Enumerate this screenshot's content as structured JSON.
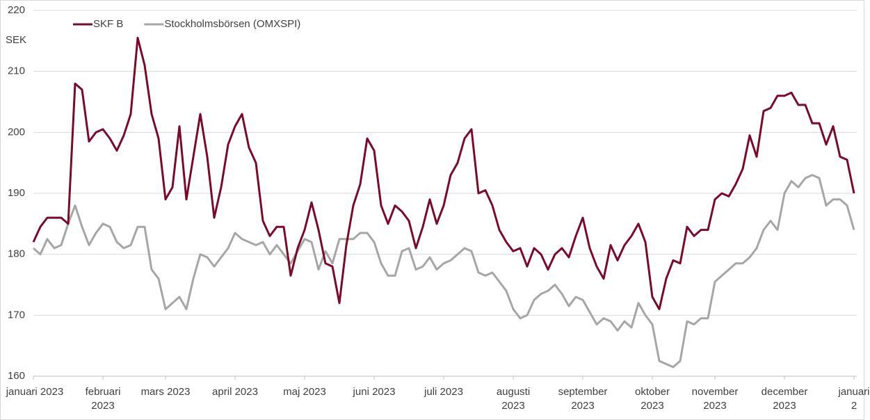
{
  "chart_data": {
    "type": "line",
    "y_label": "SEK",
    "categories": [
      "januari 2023",
      null,
      null,
      null,
      null,
      null,
      null,
      null,
      null,
      null,
      "februari\n2023",
      null,
      null,
      null,
      null,
      null,
      null,
      null,
      null,
      "mars 2023",
      null,
      null,
      null,
      null,
      null,
      null,
      null,
      null,
      null,
      "april 2023",
      null,
      null,
      null,
      null,
      null,
      null,
      null,
      null,
      null,
      "maj 2023",
      null,
      null,
      null,
      null,
      null,
      null,
      null,
      null,
      null,
      "juni 2023",
      null,
      null,
      null,
      null,
      null,
      null,
      null,
      null,
      null,
      "juli 2023",
      null,
      null,
      null,
      null,
      null,
      null,
      null,
      null,
      null,
      "augusti\n2023",
      null,
      null,
      null,
      null,
      null,
      null,
      null,
      null,
      null,
      "september\n2023",
      null,
      null,
      null,
      null,
      null,
      null,
      null,
      null,
      null,
      "oktober\n2023",
      null,
      null,
      null,
      null,
      null,
      null,
      null,
      null,
      "november\n2023",
      null,
      null,
      null,
      null,
      null,
      null,
      null,
      null,
      null,
      "december\n2023",
      null,
      null,
      null,
      null,
      null,
      null,
      null,
      null,
      null,
      "januari 2"
    ],
    "series": [
      {
        "name": "SKF B",
        "color": "#7b0a2a",
        "values": [
          182,
          184.5,
          186,
          186,
          186,
          185,
          208,
          207,
          198.5,
          200,
          200.5,
          199,
          197,
          199.5,
          203,
          215.5,
          211,
          203,
          199,
          189,
          191,
          201,
          189,
          196,
          203,
          196,
          186,
          191,
          198,
          201,
          203,
          197.5,
          195,
          185.5,
          183,
          184.5,
          184.5,
          176.5,
          181,
          184,
          188.5,
          184,
          178.5,
          178,
          172,
          181.5,
          188,
          191.5,
          199,
          197,
          188,
          185,
          188,
          187,
          185.5,
          181,
          184.5,
          189,
          185,
          188,
          193,
          195,
          199,
          200.5,
          190,
          190.5,
          188,
          184,
          182,
          180.5,
          181,
          178,
          181,
          180,
          177.5,
          180,
          181,
          179.5,
          183,
          186,
          181,
          178,
          176,
          181.5,
          179,
          181.5,
          183,
          185,
          182,
          173,
          171,
          176,
          179,
          178.5,
          184.5,
          183,
          184,
          184,
          189,
          190,
          189.5,
          191.5,
          194,
          199.5,
          196,
          203.5,
          204,
          206,
          206,
          206.5,
          204.5,
          204.5,
          201.5,
          201.5,
          198,
          201,
          196,
          195.5,
          190
        ]
      },
      {
        "name": "Stockholmsbörsen (OMXSPI)",
        "color": "#a6a6a6",
        "values": [
          181,
          180,
          182.5,
          181,
          181.5,
          185,
          188,
          184.5,
          181.5,
          183.5,
          185,
          184.5,
          182,
          181,
          181.5,
          184.5,
          184.5,
          177.5,
          176,
          171,
          172,
          173,
          171,
          176,
          180,
          179.5,
          178,
          179.5,
          181,
          183.5,
          182.5,
          182,
          181.5,
          182,
          180,
          181.5,
          180,
          178.5,
          180.5,
          182.5,
          182,
          177.5,
          180.5,
          178.5,
          182.5,
          182.5,
          182.5,
          183.5,
          183.5,
          182,
          178.5,
          176.5,
          176.5,
          180.5,
          181,
          177.5,
          178,
          179.5,
          177.5,
          178.5,
          179,
          180,
          181,
          180.5,
          177,
          176.5,
          177,
          175.5,
          174,
          171,
          169.5,
          170,
          172.5,
          173.5,
          174,
          175,
          173.5,
          171.5,
          173,
          172.5,
          170.5,
          168.5,
          169.5,
          169,
          167.5,
          169,
          168,
          172,
          170,
          168.5,
          162.5,
          162,
          161.5,
          162.5,
          169,
          168.5,
          169.5,
          169.5,
          175.5,
          176.5,
          177.5,
          178.5,
          178.5,
          179.5,
          181,
          184,
          185.5,
          184,
          190,
          192,
          191,
          192.5,
          193,
          192.5,
          188,
          189,
          189,
          188,
          184
        ]
      }
    ],
    "ylim": [
      160,
      220
    ],
    "yticks": [
      160,
      170,
      180,
      190,
      200,
      210,
      220
    ],
    "grid": true,
    "legend": "top-left"
  }
}
